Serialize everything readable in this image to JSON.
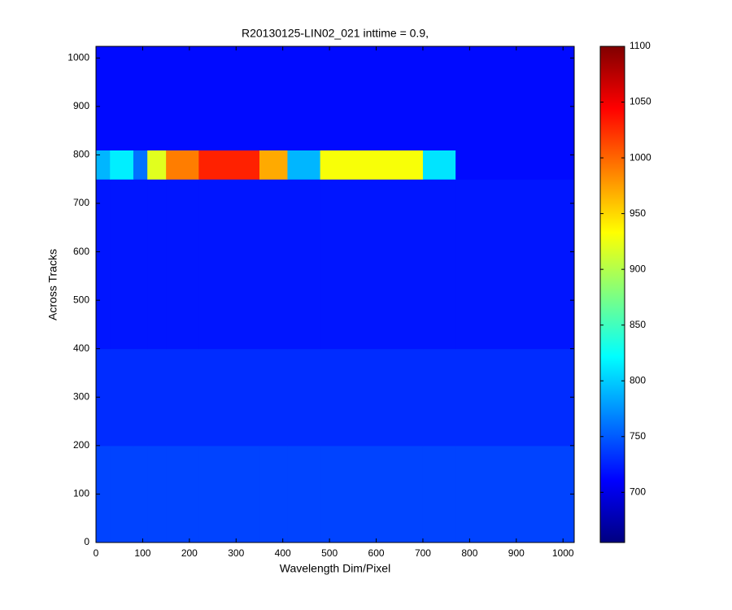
{
  "chart_data": {
    "type": "heatmap",
    "title": "R20130125-LIN02_021 inttime = 0.9,",
    "x_label": "Wavelength Dim/Pixel",
    "y_label": "Across Tracks",
    "xbins": [
      0,
      30,
      80,
      110,
      150,
      220,
      350,
      410,
      480,
      700,
      770,
      1024
    ],
    "ybins": [
      0,
      200,
      400,
      750,
      810,
      1024
    ],
    "z": [
      [
        740,
        740,
        740,
        740,
        740,
        740,
        740,
        740,
        740,
        740,
        740
      ],
      [
        730,
        730,
        730,
        730,
        730,
        730,
        730,
        730,
        730,
        730,
        730
      ],
      [
        720,
        720,
        720,
        720,
        720,
        720,
        720,
        720,
        720,
        720,
        720
      ],
      [
        790,
        815,
        760,
        920,
        990,
        1030,
        970,
        790,
        930,
        810,
        715
      ],
      [
        715,
        715,
        715,
        715,
        715,
        715,
        715,
        715,
        715,
        715,
        715
      ]
    ],
    "xlim": [
      0,
      1024
    ],
    "ylim": [
      0,
      1024
    ],
    "xticks": [
      0,
      100,
      200,
      300,
      400,
      500,
      600,
      700,
      800,
      900,
      1000
    ],
    "yticks": [
      0,
      100,
      200,
      300,
      400,
      500,
      600,
      700,
      800,
      900,
      1000
    ],
    "colormap": "jet",
    "clim": [
      655,
      1100
    ],
    "cticks": [
      700,
      750,
      800,
      850,
      900,
      950,
      1000,
      1050,
      1100
    ]
  }
}
